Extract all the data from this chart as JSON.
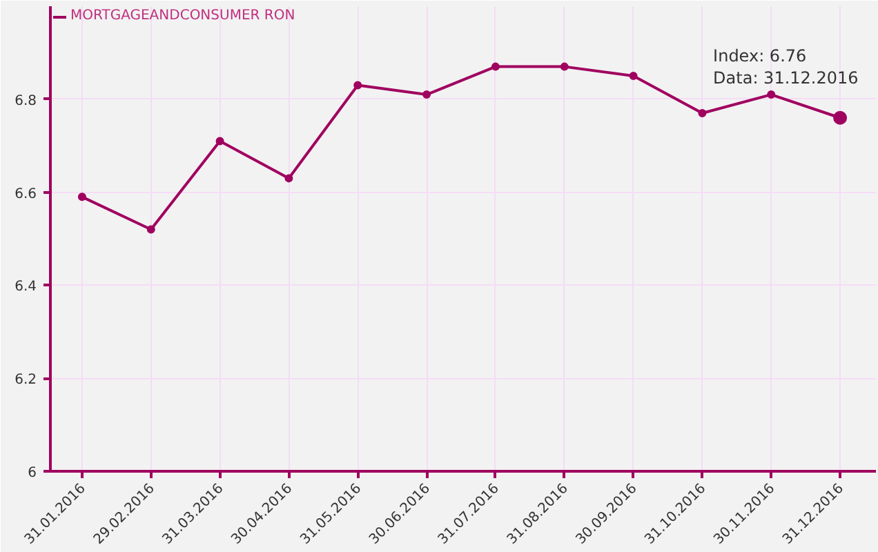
{
  "chart_data": {
    "type": "line",
    "categories": [
      "31.01.2016",
      "29.02.2016",
      "31.03.2016",
      "30.04.2016",
      "31.05.2016",
      "30.06.2016",
      "31.07.2016",
      "31.08.2016",
      "30.09.2016",
      "31.10.2016",
      "30.11.2016",
      "31.12.2016"
    ],
    "series": [
      {
        "name": "MORTGAGEANDCONSUMER RON",
        "color": "#a0005f",
        "values": [
          6.59,
          6.52,
          6.71,
          6.63,
          6.83,
          6.81,
          6.87,
          6.87,
          6.85,
          6.77,
          6.81,
          6.76
        ]
      }
    ],
    "ylim": [
      6,
      7
    ],
    "yticks": [
      6,
      6.2,
      6.4,
      6.6,
      6.8
    ],
    "grid": true,
    "legend": "top left",
    "marker": "circle",
    "line_style": "solid",
    "annotations": [
      {
        "text": "Index: 6.76\nData: 31.12.2016",
        "x": "31.12.2016",
        "y": 6.76
      }
    ]
  }
}
